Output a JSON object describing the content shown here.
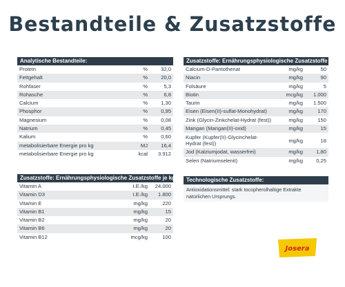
{
  "title": "Bestandteile & Zusatzstoffe",
  "analytische": {
    "header": "Analytische Bestandteile:",
    "rows": [
      {
        "name": "Protein",
        "unit": "%",
        "value": "32,0"
      },
      {
        "name": "Fettgehalt",
        "unit": "%",
        "value": "20,0"
      },
      {
        "name": "Rohfaser",
        "unit": "%",
        "value": "5,3"
      },
      {
        "name": "Rohasche",
        "unit": "%",
        "value": "6,8"
      },
      {
        "name": "Calcium",
        "unit": "%",
        "value": "1,30"
      },
      {
        "name": "Phosphor",
        "unit": "%",
        "value": "0,95"
      },
      {
        "name": "Magnesium",
        "unit": "%",
        "value": "0,08"
      },
      {
        "name": "Natrium",
        "unit": "%",
        "value": "0,45"
      },
      {
        "name": "Kalium",
        "unit": "%",
        "value": "0,60"
      },
      {
        "name": "metabolisierbare Energie pro kg",
        "unit": "MJ",
        "value": "16,4"
      },
      {
        "name": "metabolisierbare Energie pro kg",
        "unit": "kcal",
        "value": "3.912"
      }
    ]
  },
  "vitamine": {
    "header": "Zusatzstoffe: Ernährungsphysiologische Zusatzstoffe je kg:",
    "rows": [
      {
        "name": "Vitamin A",
        "unit": "I.E./kg",
        "value": "24.000"
      },
      {
        "name": "Vitamin D3",
        "unit": "I.E./kg",
        "value": "1.800"
      },
      {
        "name": "Vitamin E",
        "unit": "mg/kg",
        "value": "220"
      },
      {
        "name": "Vitamin B1",
        "unit": "mg/kg",
        "value": "15"
      },
      {
        "name": "Vitamin B2",
        "unit": "mg/kg",
        "value": "20"
      },
      {
        "name": "Vitamin B6",
        "unit": "mg/kg",
        "value": "20"
      },
      {
        "name": "Vitamin B12",
        "unit": "mcg/kg",
        "value": "100"
      }
    ]
  },
  "spurenelemente": {
    "header": "Zusatzstoffe: Ernährungsphysiologische Zusatzstoffe je kg:",
    "rows": [
      {
        "name": "Calcium-D-Pantothenat",
        "unit": "mg/kg",
        "value": "50"
      },
      {
        "name": "Niacin",
        "unit": "mg/kg",
        "value": "90"
      },
      {
        "name": "Folsäure",
        "unit": "mg/kg",
        "value": "5"
      },
      {
        "name": "Biotin",
        "unit": "mcg/kg",
        "value": "1.000"
      },
      {
        "name": "Taurin",
        "unit": "mg/kg",
        "value": "1.500"
      },
      {
        "name": "Eisen (Eisen(II)-sulfat-Monohydrat)",
        "unit": "mg/kg",
        "value": "170"
      },
      {
        "name": "Zink (Glycin-Zinkchelat-Hydrat (fest))",
        "unit": "mg/kg",
        "value": "150"
      },
      {
        "name": "Mangan (Mangan(II)-oxid)",
        "unit": "mg/kg",
        "value": "15"
      },
      {
        "name": "Kupfer (Kupfer(II)-Glycinchelat-Hydrat (fest))",
        "unit": "mg/kg",
        "value": "18"
      },
      {
        "name": "Jod (Kalziumjodat, wasserfrei)",
        "unit": "mg/kg",
        "value": "1,80"
      },
      {
        "name": "Selen (Natriumselenit)",
        "unit": "mg/kg",
        "value": "0,25"
      }
    ]
  },
  "technologisch": {
    "header": "Technologische Zusatzstoffe:",
    "text": "Antioxidationsmittel: stark tocopherolhaltige Extrakte natürlichen Ursprungs."
  },
  "logo": {
    "text": "Josera",
    "colors": {
      "bg": "#f6c800",
      "text": "#d9241c"
    }
  },
  "colors": {
    "header": "#2f3d4a",
    "stripe": "#e6e8ea",
    "title": "#2d3f4d"
  }
}
